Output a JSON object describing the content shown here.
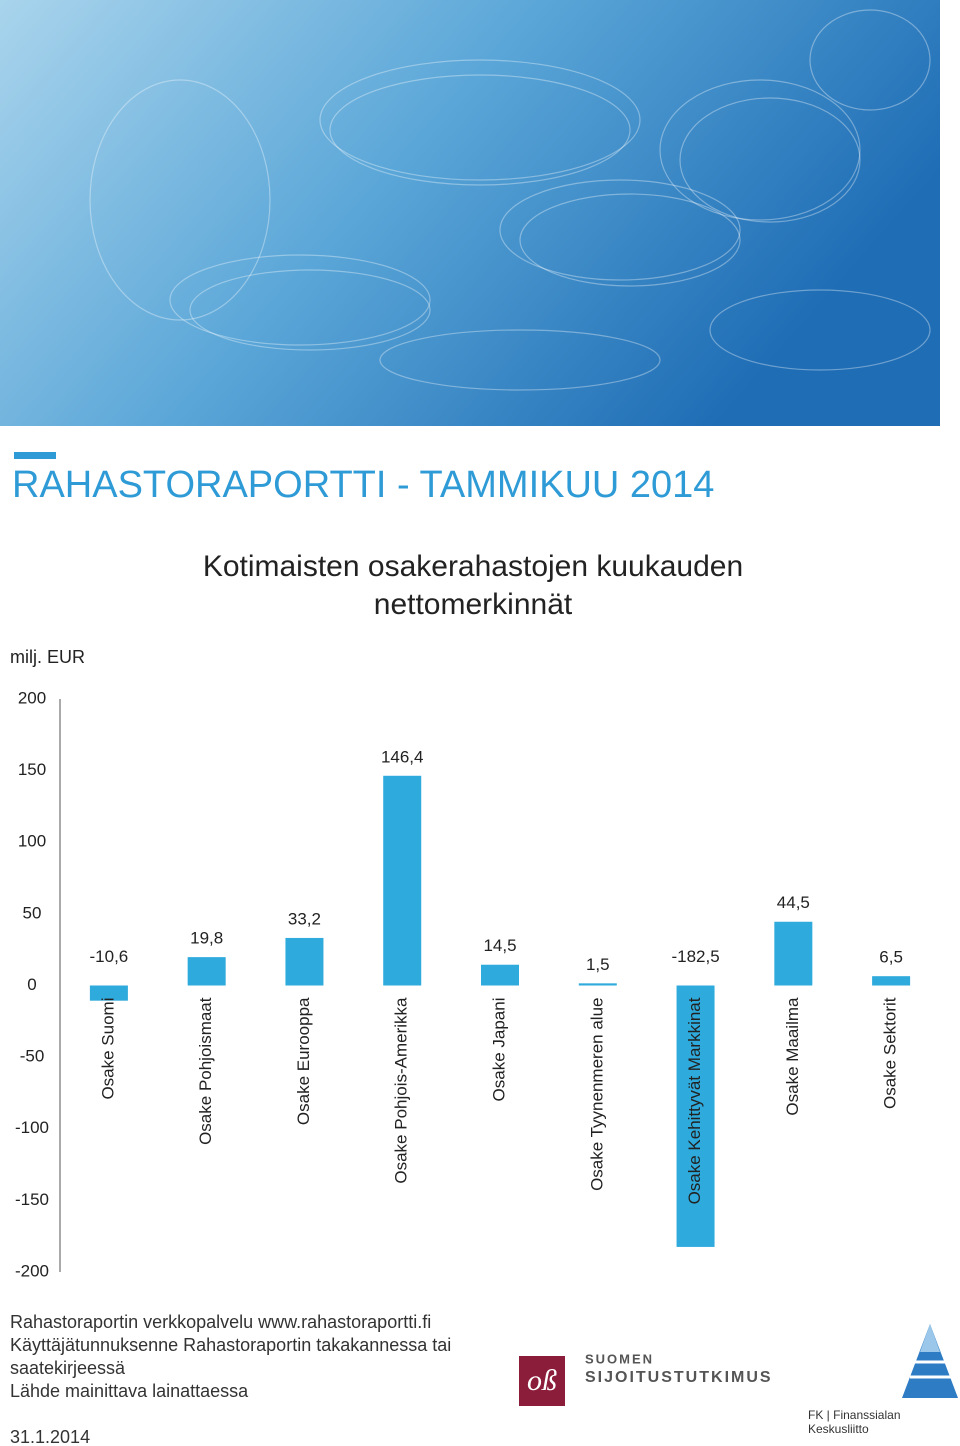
{
  "header": {
    "title": "RAHASTORAPORTTI - TAMMIKUU 2014"
  },
  "chart_data": {
    "type": "bar",
    "title": "Kotimaisten osakerahastojen kuukauden nettomerkinnät",
    "y_label": "milj. EUR",
    "categories": [
      "Osake Suomi",
      "Osake Pohjoismaat",
      "Osake Eurooppa",
      "Osake Pohjois-Amerikka",
      "Osake Japani",
      "Osake Tyynenmeren alue",
      "Osake Kehittyvät Markkinat",
      "Osake Maailma",
      "Osake Sektorit"
    ],
    "values": [
      -10.6,
      19.8,
      33.2,
      146.4,
      14.5,
      1.5,
      -182.5,
      44.5,
      6.5
    ],
    "value_labels": [
      "-10,6",
      "19,8",
      "33,2",
      "146,4",
      "14,5",
      "1,5",
      "-182,5",
      "44,5",
      "6,5"
    ],
    "color": "#2eaadc",
    "ylim": [
      -200,
      200
    ],
    "yticks": [
      -200,
      -150,
      -100,
      -50,
      0,
      50,
      100,
      150,
      200
    ],
    "grid": false
  },
  "footer": {
    "lines": [
      "Rahastoraportin verkkopalvelu www.rahastoraportti.fi",
      "Käyttäjätunnuksenne Rahastoraportin takakannessa tai saatekirjeessä",
      "Lähde mainittava lainattaessa"
    ],
    "date": "31.1.2014"
  },
  "logos": {
    "sijoitustutkimus": [
      "SUOMEN",
      "SIJOITUSTUTKIMUS"
    ],
    "fk": "FK | Finanssialan Keskusliitto"
  }
}
